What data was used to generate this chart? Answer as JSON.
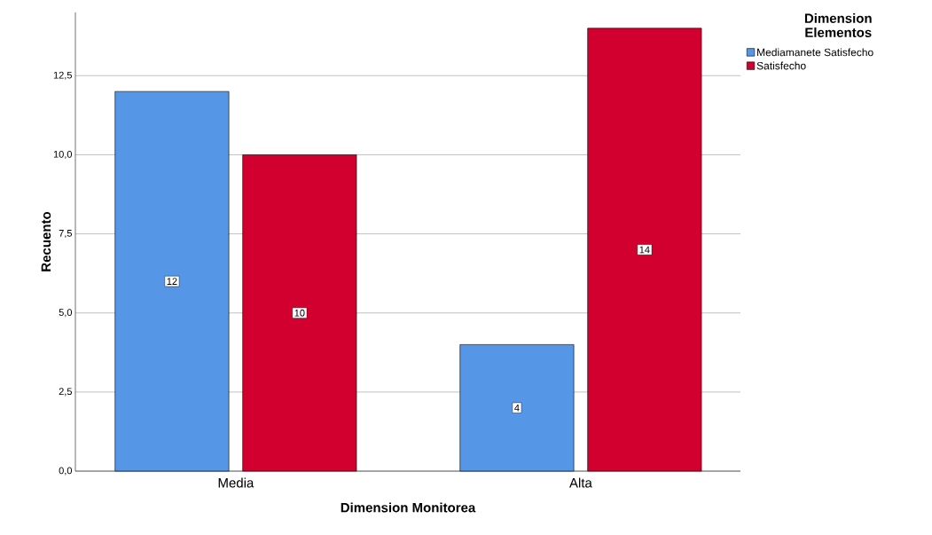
{
  "chart_data": {
    "type": "bar",
    "xlabel": "Dimension Monitorea",
    "ylabel": "Recuento",
    "legend_title": "Dimension Elementos",
    "categories": [
      "Media",
      "Alta"
    ],
    "series": [
      {
        "name": "Mediamanete Satisfecho",
        "color": "#5596e6",
        "values": [
          12,
          4
        ]
      },
      {
        "name": "Satisfecho",
        "color": "#d2002e",
        "values": [
          10,
          14
        ]
      }
    ],
    "ylim": [
      0,
      14.5
    ],
    "yticks": [
      {
        "value": 0,
        "label": "0,0"
      },
      {
        "value": 2.5,
        "label": "2,5"
      },
      {
        "value": 5,
        "label": "5,0"
      },
      {
        "value": 7.5,
        "label": "7,5"
      },
      {
        "value": 10,
        "label": "10,0"
      },
      {
        "value": 12.5,
        "label": "12,5"
      }
    ],
    "grid": "y",
    "legend": "right",
    "data_labels": true
  }
}
